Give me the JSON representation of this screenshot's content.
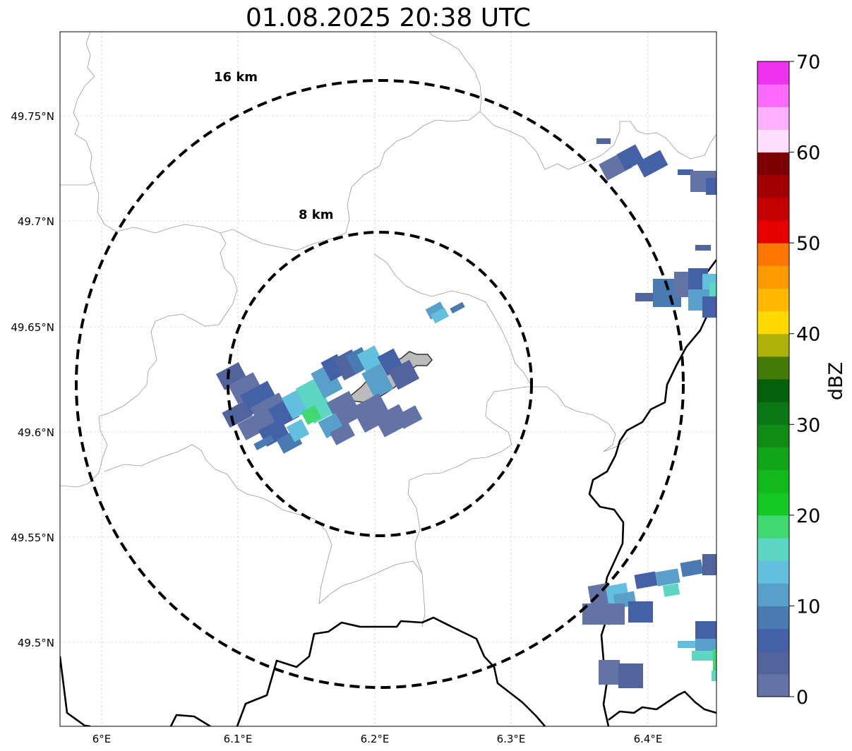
{
  "title": "01.08.2025 20:38 UTC",
  "map": {
    "x_ticks": [
      "6°E",
      "6.1°E",
      "6.2°E",
      "6.3°E",
      "6.4°E"
    ],
    "y_ticks": [
      "49.75°N",
      "49.7°N",
      "49.65°N",
      "49.6°N",
      "49.55°N",
      "49.5°N"
    ],
    "range_rings": [
      {
        "label": "16 km",
        "radius_km": 16
      },
      {
        "label": "8 km",
        "radius_km": 8
      }
    ],
    "colors": {
      "ring": "#000000",
      "border": "#000000",
      "admin": "#999999",
      "grid": "#bbbbbb",
      "town_fill": "#9e9e9e"
    }
  },
  "colorbar": {
    "label": "dBZ",
    "ticks": [
      "0",
      "10",
      "20",
      "30",
      "40",
      "50",
      "60",
      "70"
    ],
    "min": 0,
    "max": 70,
    "step": 2.5,
    "colors": [
      "#6373a6",
      "#52649e",
      "#4460a7",
      "#4a7ab2",
      "#589fca",
      "#62c0de",
      "#5dd6c4",
      "#3fd871",
      "#14c921",
      "#13b81b",
      "#11a51a",
      "#0e8c14",
      "#097813",
      "#05600c",
      "#437a08",
      "#aeb208",
      "#ffd900",
      "#ffb700",
      "#ff9900",
      "#ff7700",
      "#e60000",
      "#c40000",
      "#a00000",
      "#7d0000",
      "#ffddff",
      "#ffb0ff",
      "#ff69ff",
      "#ee33ee"
    ]
  }
}
